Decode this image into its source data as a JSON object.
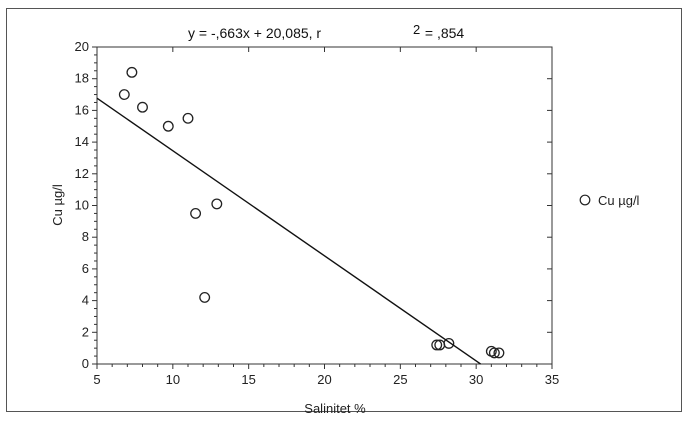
{
  "chart_data": {
    "type": "scatter",
    "title": "y = -,663x + 20,085, r",
    "title_superscript": "2",
    "title_suffix": " = ,854",
    "xlabel": "Salinitet %",
    "ylabel": "Cu µg/l",
    "xlim": [
      5,
      35
    ],
    "ylim": [
      0,
      20
    ],
    "x_ticks": [
      5,
      10,
      15,
      20,
      25,
      30,
      35
    ],
    "y_ticks": [
      0,
      2,
      4,
      6,
      8,
      10,
      12,
      14,
      16,
      18,
      20
    ],
    "x_tick_labels": [
      "5",
      "10",
      "15",
      "20",
      "25",
      "30",
      "35"
    ],
    "y_tick_labels": [
      "0",
      "2",
      "4",
      "6",
      "8",
      "10",
      "12",
      "14",
      "16",
      "18",
      "20"
    ],
    "grid": false,
    "legend_position": "right",
    "series": [
      {
        "name": "Cu µg/l",
        "marker": "open-circle",
        "x": [
          6.8,
          7.3,
          8.0,
          9.7,
          11.0,
          11.5,
          12.1,
          12.9,
          27.4,
          27.6,
          28.2,
          31.0,
          31.2,
          31.5
        ],
        "y": [
          17.0,
          18.4,
          16.2,
          15.0,
          15.5,
          9.5,
          4.2,
          10.1,
          1.2,
          1.2,
          1.3,
          0.8,
          0.7,
          0.7
        ]
      }
    ],
    "trendline": {
      "slope": -0.663,
      "intercept": 20.085,
      "x_start": 5,
      "x_end": 30.3
    },
    "colors": {
      "marker": "#222222",
      "line": "#111111",
      "axis": "#333333"
    }
  }
}
